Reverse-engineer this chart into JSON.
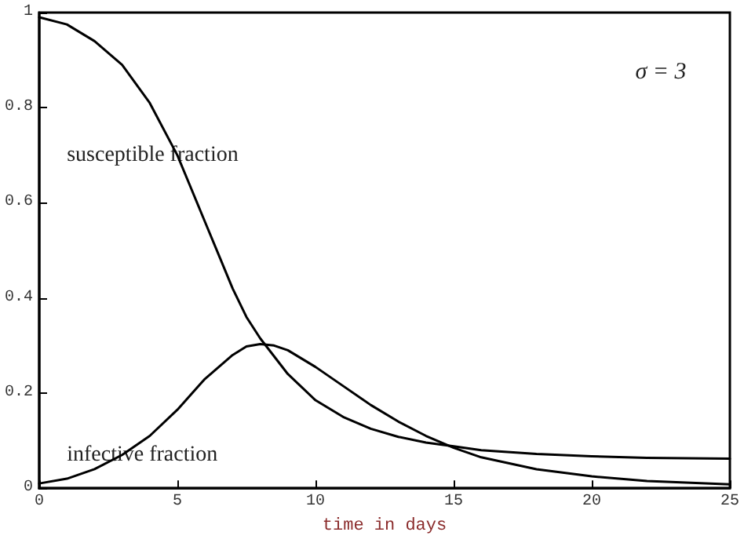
{
  "chart_data": {
    "type": "line",
    "xlabel": "time in days",
    "annotations": [
      "σ = 3"
    ],
    "xlim": [
      0,
      25
    ],
    "xticks": [
      0,
      5,
      10,
      15,
      20,
      25
    ],
    "ylim": [
      0,
      1
    ],
    "yticks": [
      0,
      0.2,
      0.4,
      0.6,
      0.8,
      1
    ],
    "grid": false,
    "legend": false,
    "marker": "none",
    "line_style": "solid",
    "series": [
      {
        "name": "susceptible fraction",
        "color": "#000000",
        "x": [
          0,
          1,
          2,
          3,
          4,
          5,
          5.5,
          6,
          6.5,
          7,
          7.5,
          8,
          9,
          10,
          11,
          12,
          13,
          14,
          15,
          16,
          18,
          20,
          22,
          25
        ],
        "values": [
          0.99,
          0.975,
          0.94,
          0.89,
          0.81,
          0.7,
          0.63,
          0.56,
          0.49,
          0.42,
          0.36,
          0.315,
          0.24,
          0.185,
          0.15,
          0.125,
          0.108,
          0.096,
          0.088,
          0.08,
          0.072,
          0.067,
          0.064,
          0.062
        ]
      },
      {
        "name": "infective fraction",
        "color": "#000000",
        "x": [
          0,
          1,
          2,
          3,
          4,
          5,
          6,
          7,
          7.5,
          8,
          8.5,
          9,
          10,
          11,
          12,
          13,
          14,
          15,
          16,
          18,
          20,
          22,
          25
        ],
        "values": [
          0.01,
          0.02,
          0.04,
          0.07,
          0.11,
          0.165,
          0.23,
          0.28,
          0.298,
          0.303,
          0.3,
          0.29,
          0.255,
          0.215,
          0.175,
          0.14,
          0.11,
          0.085,
          0.065,
          0.04,
          0.025,
          0.015,
          0.008
        ]
      }
    ]
  }
}
